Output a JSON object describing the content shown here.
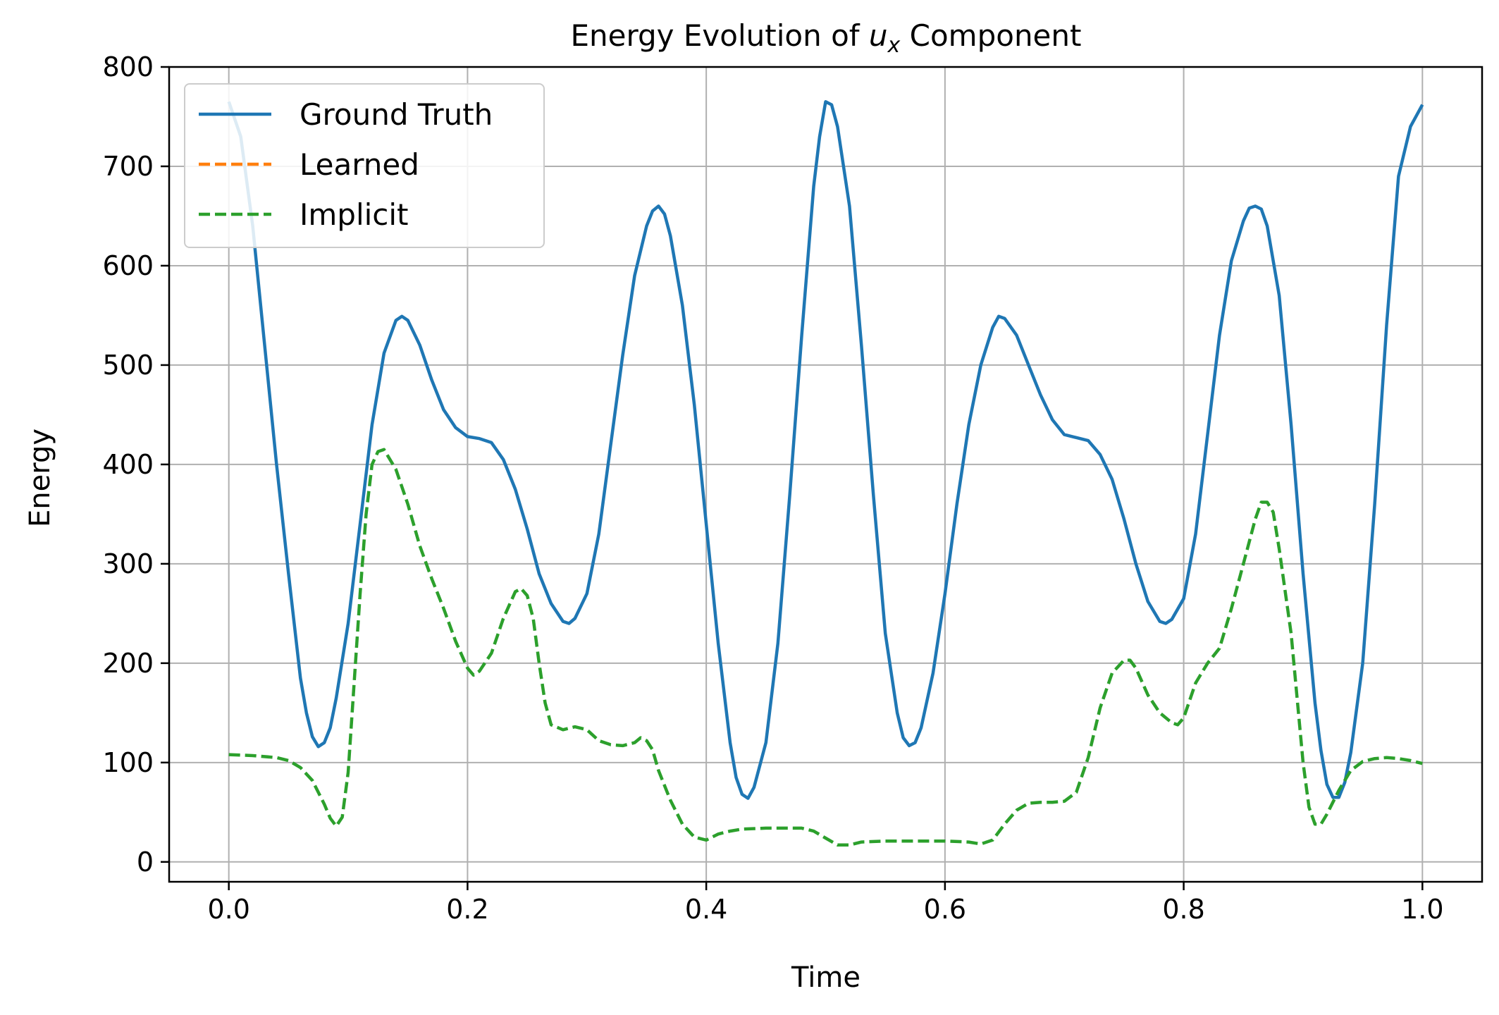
{
  "chart_data": {
    "type": "line",
    "title": "Energy Evolution of u_x Component",
    "title_parts": {
      "prefix": "Energy Evolution of ",
      "var": "u",
      "sub": "x",
      "suffix": " Component"
    },
    "xlabel": "Time",
    "ylabel": "Energy",
    "xlim": [
      -0.05,
      1.05
    ],
    "ylim": [
      -20,
      800
    ],
    "xticks": [
      0.0,
      0.2,
      0.4,
      0.6,
      0.8,
      1.0
    ],
    "xtick_labels": [
      "0.0",
      "0.2",
      "0.4",
      "0.6",
      "0.8",
      "1.0"
    ],
    "yticks": [
      0,
      100,
      200,
      300,
      400,
      500,
      600,
      700,
      800
    ],
    "ytick_labels": [
      "0",
      "100",
      "200",
      "300",
      "400",
      "500",
      "600",
      "700",
      "800"
    ],
    "grid": true,
    "legend_position": "top-left",
    "series": [
      {
        "name": "Ground Truth",
        "color": "#1f77b4",
        "style": "solid",
        "points": [
          [
            0.0,
            765
          ],
          [
            0.01,
            730
          ],
          [
            0.02,
            640
          ],
          [
            0.03,
            520
          ],
          [
            0.04,
            400
          ],
          [
            0.05,
            290
          ],
          [
            0.06,
            185
          ],
          [
            0.065,
            150
          ],
          [
            0.07,
            126
          ],
          [
            0.075,
            116
          ],
          [
            0.08,
            120
          ],
          [
            0.085,
            135
          ],
          [
            0.09,
            165
          ],
          [
            0.1,
            240
          ],
          [
            0.11,
            340
          ],
          [
            0.12,
            440
          ],
          [
            0.13,
            512
          ],
          [
            0.14,
            545
          ],
          [
            0.145,
            549
          ],
          [
            0.15,
            545
          ],
          [
            0.16,
            520
          ],
          [
            0.17,
            485
          ],
          [
            0.18,
            455
          ],
          [
            0.19,
            437
          ],
          [
            0.2,
            428
          ],
          [
            0.21,
            426
          ],
          [
            0.22,
            422
          ],
          [
            0.23,
            405
          ],
          [
            0.24,
            375
          ],
          [
            0.25,
            335
          ],
          [
            0.26,
            290
          ],
          [
            0.27,
            260
          ],
          [
            0.28,
            242
          ],
          [
            0.285,
            240
          ],
          [
            0.29,
            245
          ],
          [
            0.3,
            270
          ],
          [
            0.31,
            330
          ],
          [
            0.32,
            420
          ],
          [
            0.33,
            510
          ],
          [
            0.34,
            590
          ],
          [
            0.35,
            640
          ],
          [
            0.355,
            655
          ],
          [
            0.36,
            660
          ],
          [
            0.365,
            652
          ],
          [
            0.37,
            630
          ],
          [
            0.38,
            560
          ],
          [
            0.39,
            460
          ],
          [
            0.4,
            340
          ],
          [
            0.41,
            220
          ],
          [
            0.42,
            120
          ],
          [
            0.425,
            85
          ],
          [
            0.43,
            68
          ],
          [
            0.435,
            64
          ],
          [
            0.44,
            75
          ],
          [
            0.45,
            120
          ],
          [
            0.46,
            220
          ],
          [
            0.47,
            370
          ],
          [
            0.48,
            530
          ],
          [
            0.49,
            680
          ],
          [
            0.495,
            730
          ],
          [
            0.5,
            765
          ],
          [
            0.505,
            762
          ],
          [
            0.51,
            740
          ],
          [
            0.52,
            660
          ],
          [
            0.53,
            520
          ],
          [
            0.54,
            370
          ],
          [
            0.55,
            230
          ],
          [
            0.56,
            150
          ],
          [
            0.565,
            125
          ],
          [
            0.57,
            117
          ],
          [
            0.575,
            120
          ],
          [
            0.58,
            135
          ],
          [
            0.59,
            190
          ],
          [
            0.6,
            270
          ],
          [
            0.61,
            360
          ],
          [
            0.62,
            440
          ],
          [
            0.63,
            500
          ],
          [
            0.64,
            538
          ],
          [
            0.645,
            549
          ],
          [
            0.65,
            547
          ],
          [
            0.66,
            530
          ],
          [
            0.67,
            500
          ],
          [
            0.68,
            470
          ],
          [
            0.69,
            445
          ],
          [
            0.7,
            430
          ],
          [
            0.71,
            427
          ],
          [
            0.72,
            424
          ],
          [
            0.73,
            410
          ],
          [
            0.74,
            385
          ],
          [
            0.75,
            345
          ],
          [
            0.76,
            300
          ],
          [
            0.77,
            262
          ],
          [
            0.78,
            242
          ],
          [
            0.785,
            240
          ],
          [
            0.79,
            244
          ],
          [
            0.8,
            265
          ],
          [
            0.81,
            330
          ],
          [
            0.82,
            430
          ],
          [
            0.83,
            530
          ],
          [
            0.84,
            605
          ],
          [
            0.85,
            645
          ],
          [
            0.855,
            658
          ],
          [
            0.86,
            660
          ],
          [
            0.865,
            657
          ],
          [
            0.87,
            640
          ],
          [
            0.88,
            570
          ],
          [
            0.89,
            440
          ],
          [
            0.9,
            290
          ],
          [
            0.91,
            160
          ],
          [
            0.915,
            112
          ],
          [
            0.92,
            78
          ],
          [
            0.925,
            65
          ],
          [
            0.93,
            65
          ],
          [
            0.935,
            80
          ],
          [
            0.94,
            110
          ],
          [
            0.95,
            200
          ],
          [
            0.96,
            360
          ],
          [
            0.97,
            540
          ],
          [
            0.98,
            690
          ],
          [
            0.99,
            740
          ],
          [
            1.0,
            762
          ]
        ]
      },
      {
        "name": "Learned",
        "color": "#ff7f0e",
        "style": "dashed",
        "points": []
      },
      {
        "name": "Implicit",
        "color": "#2ca02c",
        "style": "dashed",
        "points": [
          [
            0.0,
            108
          ],
          [
            0.02,
            107
          ],
          [
            0.04,
            105
          ],
          [
            0.05,
            102
          ],
          [
            0.06,
            95
          ],
          [
            0.07,
            82
          ],
          [
            0.08,
            58
          ],
          [
            0.085,
            44
          ],
          [
            0.09,
            36
          ],
          [
            0.095,
            45
          ],
          [
            0.1,
            90
          ],
          [
            0.105,
            180
          ],
          [
            0.11,
            270
          ],
          [
            0.115,
            350
          ],
          [
            0.12,
            400
          ],
          [
            0.125,
            413
          ],
          [
            0.13,
            415
          ],
          [
            0.14,
            395
          ],
          [
            0.15,
            360
          ],
          [
            0.16,
            318
          ],
          [
            0.17,
            285
          ],
          [
            0.18,
            255
          ],
          [
            0.19,
            222
          ],
          [
            0.2,
            195
          ],
          [
            0.205,
            188
          ],
          [
            0.21,
            192
          ],
          [
            0.22,
            210
          ],
          [
            0.23,
            245
          ],
          [
            0.24,
            272
          ],
          [
            0.245,
            275
          ],
          [
            0.25,
            268
          ],
          [
            0.255,
            245
          ],
          [
            0.26,
            200
          ],
          [
            0.265,
            160
          ],
          [
            0.27,
            138
          ],
          [
            0.28,
            133
          ],
          [
            0.29,
            136
          ],
          [
            0.3,
            133
          ],
          [
            0.31,
            122
          ],
          [
            0.32,
            118
          ],
          [
            0.33,
            117
          ],
          [
            0.34,
            120
          ],
          [
            0.345,
            125
          ],
          [
            0.35,
            122
          ],
          [
            0.355,
            113
          ],
          [
            0.36,
            92
          ],
          [
            0.37,
            62
          ],
          [
            0.38,
            38
          ],
          [
            0.39,
            25
          ],
          [
            0.4,
            22
          ],
          [
            0.41,
            28
          ],
          [
            0.42,
            31
          ],
          [
            0.43,
            33
          ],
          [
            0.45,
            34
          ],
          [
            0.47,
            34
          ],
          [
            0.48,
            34
          ],
          [
            0.49,
            31
          ],
          [
            0.5,
            24
          ],
          [
            0.51,
            17
          ],
          [
            0.52,
            17
          ],
          [
            0.53,
            20
          ],
          [
            0.55,
            21
          ],
          [
            0.6,
            21
          ],
          [
            0.62,
            20
          ],
          [
            0.63,
            18
          ],
          [
            0.64,
            22
          ],
          [
            0.65,
            38
          ],
          [
            0.66,
            52
          ],
          [
            0.67,
            59
          ],
          [
            0.68,
            60
          ],
          [
            0.69,
            60
          ],
          [
            0.7,
            61
          ],
          [
            0.71,
            70
          ],
          [
            0.72,
            105
          ],
          [
            0.73,
            155
          ],
          [
            0.74,
            190
          ],
          [
            0.75,
            203
          ],
          [
            0.755,
            203
          ],
          [
            0.76,
            195
          ],
          [
            0.77,
            168
          ],
          [
            0.78,
            150
          ],
          [
            0.79,
            140
          ],
          [
            0.795,
            138
          ],
          [
            0.8,
            145
          ],
          [
            0.81,
            180
          ],
          [
            0.82,
            200
          ],
          [
            0.83,
            215
          ],
          [
            0.84,
            255
          ],
          [
            0.85,
            300
          ],
          [
            0.86,
            345
          ],
          [
            0.865,
            362
          ],
          [
            0.87,
            362
          ],
          [
            0.875,
            352
          ],
          [
            0.88,
            315
          ],
          [
            0.89,
            230
          ],
          [
            0.9,
            100
          ],
          [
            0.905,
            55
          ],
          [
            0.91,
            38
          ],
          [
            0.915,
            38
          ],
          [
            0.92,
            48
          ],
          [
            0.93,
            72
          ],
          [
            0.94,
            92
          ],
          [
            0.95,
            101
          ],
          [
            0.96,
            104
          ],
          [
            0.97,
            105
          ],
          [
            0.98,
            104
          ],
          [
            0.99,
            102
          ],
          [
            1.0,
            99
          ]
        ]
      }
    ]
  }
}
